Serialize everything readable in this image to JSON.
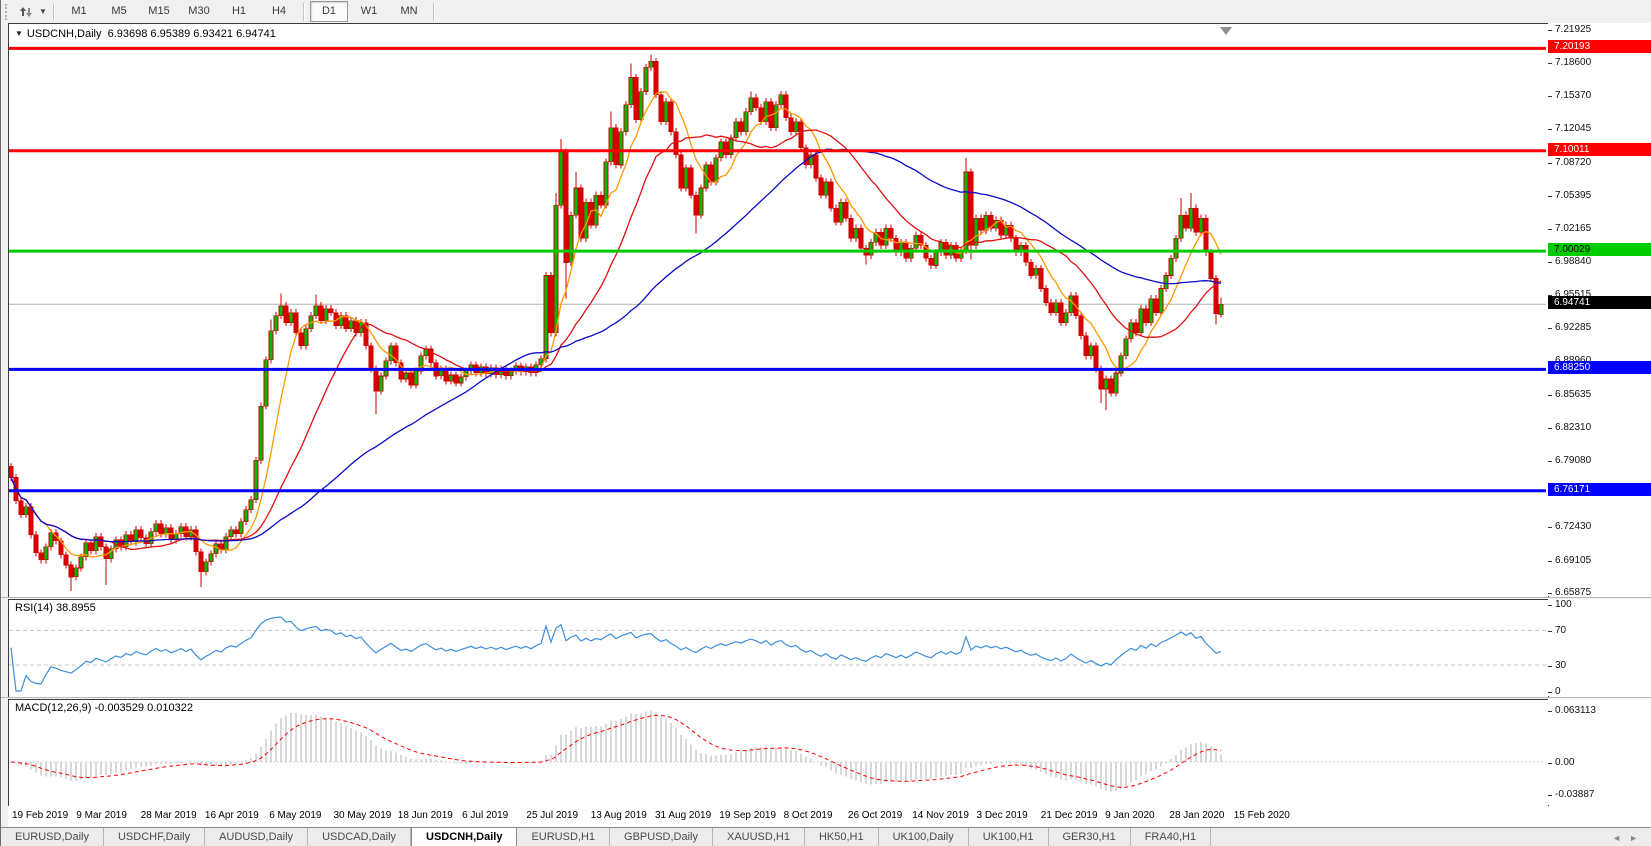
{
  "toolbar": {
    "timeframes": [
      "M1",
      "M5",
      "M15",
      "M30",
      "H1",
      "H4",
      "D1",
      "W1",
      "MN"
    ],
    "active_timeframe": "D1"
  },
  "chart": {
    "title_symbol": "USDCNH,Daily",
    "title_ohlc": "6.93698 6.95389 6.93421 6.94741"
  },
  "indicators": {
    "rsi": {
      "label": "RSI(14)",
      "value": "38.8955",
      "axis_labels": [
        "100",
        "70",
        "30",
        "0"
      ],
      "axis_values": [
        100,
        70,
        30,
        0
      ],
      "levels": [
        70,
        30
      ],
      "color": "#3e8ede"
    },
    "macd": {
      "label": "MACD(12,26,9)",
      "values": "-0.003529 0.010322",
      "axis_labels": [
        "0.063113",
        "0.00",
        "-0.03887"
      ],
      "axis_values": [
        0.063113,
        0,
        -0.03887
      ],
      "histogram_color": "#b0b0b0",
      "signal_color": "#ff0000"
    }
  },
  "price_axis": {
    "ticks": [
      "7.21925",
      "7.18600",
      "7.15370",
      "7.12045",
      "7.08720",
      "7.05395",
      "7.02165",
      "6.98840",
      "6.95515",
      "6.92285",
      "6.88960",
      "6.85635",
      "6.82310",
      "6.79080",
      "6.75755",
      "6.72430",
      "6.69105",
      "6.65875"
    ]
  },
  "time_axis": {
    "labels": [
      "19 Feb 2019",
      "9 Mar 2019",
      "28 Mar 2019",
      "16 Apr 2019",
      "6 May 2019",
      "30 May 2019",
      "18 Jun 2019",
      "6 Jul 2019",
      "25 Jul 2019",
      "13 Aug 2019",
      "31 Aug 2019",
      "19 Sep 2019",
      "8 Oct 2019",
      "26 Oct 2019",
      "14 Nov 2019",
      "3 Dec 2019",
      "21 Dec 2019",
      "9 Jan 2020",
      "28 Jan 2020",
      "15 Feb 2020"
    ]
  },
  "tabs": {
    "items": [
      "EURUSD,Daily",
      "USDCHF,Daily",
      "AUDUSD,Daily",
      "USDCAD,Daily",
      "USDCNH,Daily",
      "EURUSD,H1",
      "GBPUSD,Daily",
      "XAUUSD,H1",
      "HK50,H1",
      "UK100,Daily",
      "UK100,H1",
      "GER30,H1",
      "FRA40,H1"
    ],
    "active": "USDCNH,Daily"
  },
  "chart_data": {
    "type": "candlestick",
    "symbol": "USDCNH",
    "timeframe": "Daily",
    "current_bar": {
      "open": 6.93698,
      "high": 6.95389,
      "low": 6.93421,
      "close": 6.94741
    },
    "ylim": [
      6.65875,
      7.21925
    ],
    "x_range": [
      "19 Feb 2019",
      "26 Feb 2020"
    ],
    "first_open": 6.786,
    "closes": [
      6.775,
      6.752,
      6.738,
      6.746,
      6.718,
      6.7,
      6.693,
      6.706,
      6.72,
      6.712,
      6.698,
      6.688,
      6.676,
      6.685,
      6.696,
      6.71,
      6.702,
      6.716,
      6.706,
      6.694,
      6.704,
      6.713,
      6.706,
      6.718,
      6.711,
      6.723,
      6.715,
      6.709,
      6.721,
      6.729,
      6.719,
      6.725,
      6.713,
      6.719,
      6.726,
      6.716,
      6.723,
      6.701,
      6.681,
      6.691,
      6.699,
      6.709,
      6.703,
      6.716,
      6.723,
      6.719,
      6.731,
      6.743,
      6.753,
      6.792,
      6.846,
      6.892,
      6.921,
      6.936,
      6.946,
      6.929,
      6.939,
      6.919,
      6.906,
      6.923,
      6.936,
      6.946,
      6.931,
      6.943,
      6.939,
      6.926,
      6.936,
      6.923,
      6.931,
      6.919,
      6.929,
      6.906,
      6.883,
      6.861,
      6.876,
      6.891,
      6.906,
      6.889,
      6.873,
      6.879,
      6.867,
      6.881,
      6.896,
      6.903,
      6.889,
      6.876,
      6.883,
      6.871,
      6.877,
      6.869,
      6.875,
      6.881,
      6.887,
      6.879,
      6.885,
      6.878,
      6.884,
      6.877,
      6.883,
      6.876,
      6.881,
      6.886,
      6.88,
      6.885,
      6.879,
      6.887,
      6.893,
      6.976,
      6.919,
      7.046,
      7.099,
      6.989,
      7.036,
      7.063,
      7.013,
      7.049,
      7.026,
      7.056,
      7.046,
      7.089,
      7.123,
      7.086,
      7.119,
      7.146,
      7.173,
      7.131,
      7.159,
      7.183,
      7.189,
      7.156,
      7.129,
      7.149,
      7.119,
      7.096,
      7.063,
      7.083,
      7.056,
      7.036,
      7.063,
      7.086,
      7.069,
      7.093,
      7.109,
      7.096,
      7.113,
      7.129,
      7.119,
      7.139,
      7.153,
      7.143,
      7.129,
      7.149,
      7.123,
      7.146,
      7.156,
      7.133,
      7.119,
      7.129,
      7.103,
      7.086,
      7.096,
      7.073,
      7.056,
      7.069,
      7.043,
      7.029,
      7.049,
      7.033,
      7.013,
      7.023,
      7.003,
      6.996,
      7.009,
      7.019,
      7.006,
      7.023,
      7.013,
      6.999,
      7.009,
      6.993,
      7.003,
      7.016,
      7.006,
      6.993,
      6.986,
      6.999,
      7.009,
      6.996,
      7.006,
      6.993,
      7.001,
      7.079,
      7.006,
      7.033,
      7.021,
      7.036,
      7.023,
      7.031,
      7.016,
      7.026,
      7.013,
      6.999,
      7.006,
      6.989,
      6.976,
      6.983,
      6.963,
      6.949,
      6.939,
      6.949,
      6.929,
      6.939,
      6.956,
      6.936,
      6.916,
      6.896,
      6.906,
      6.883,
      6.863,
      6.873,
      6.859,
      6.879,
      6.896,
      6.913,
      6.929,
      6.919,
      6.943,
      6.929,
      6.953,
      6.939,
      6.963,
      6.976,
      6.993,
      7.013,
      7.036,
      7.023,
      7.043,
      7.019,
      7.033,
      6.999,
      6.973,
      6.938,
      6.9474
    ],
    "wick_overrides": {
      "12": {
        "l": 6.662
      },
      "19": {
        "l": 6.668
      },
      "38": {
        "l": 6.666
      },
      "52": {
        "h": 6.932
      },
      "54": {
        "h": 6.958
      },
      "61": {
        "h": 6.957
      },
      "73": {
        "l": 6.838
      },
      "109": {
        "h": 7.058
      },
      "110": {
        "h": 7.112
      },
      "111": {
        "l": 6.953
      },
      "113": {
        "h": 7.079
      },
      "120": {
        "h": 7.139
      },
      "124": {
        "h": 7.187
      },
      "128": {
        "h": 7.196
      },
      "137": {
        "l": 7.018
      },
      "148": {
        "h": 7.159
      },
      "171": {
        "l": 6.987
      },
      "191": {
        "h": 7.093
      },
      "192": {
        "l": 6.992
      },
      "218": {
        "l": 6.849
      },
      "219": {
        "l": 6.842
      },
      "234": {
        "h": 7.053
      },
      "236": {
        "h": 7.058
      },
      "241": {
        "l": 6.927
      },
      "242": {
        "o": 6.93698,
        "h": 6.95389,
        "l": 6.93421
      }
    },
    "bull_color": "#00bb00",
    "bear_color": "#dd0000",
    "wick_color": "#cc0000",
    "moving_averages": [
      {
        "period": 8,
        "color": "#ff9900"
      },
      {
        "period": 21,
        "color": "#e01010"
      },
      {
        "period": 55,
        "color": "#0a0ac8"
      }
    ],
    "hlines": [
      {
        "price": 7.20193,
        "label": "7.20193",
        "color": "#ff0000",
        "text_color": "#ffffff"
      },
      {
        "price": 7.10011,
        "label": "7.10011",
        "color": "#ff0000",
        "text_color": "#ffffff"
      },
      {
        "price": 7.00029,
        "label": "7.00029",
        "color": "#00cc00",
        "text_color": "#000000"
      },
      {
        "price": 6.8825,
        "label": "6.88250",
        "color": "#0000ff",
        "text_color": "#ffffff"
      },
      {
        "price": 6.76171,
        "label": "6.76171",
        "color": "#0000ff",
        "text_color": "#ffffff"
      }
    ],
    "current_price": {
      "price": 6.94741,
      "label": "6.94741",
      "line_color": "#b4b4b4",
      "flag_bg": "#000000",
      "flag_text": "#ffffff"
    }
  }
}
